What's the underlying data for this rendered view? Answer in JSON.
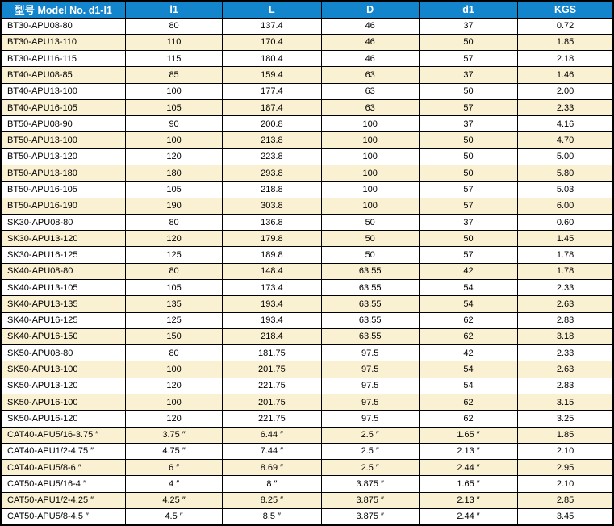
{
  "colors": {
    "header_background": "#1285CD",
    "header_text": "#FFFFFF",
    "row_alternate_background": "#FAF0D2",
    "row_background": "#FFFFFF",
    "border": "#000000",
    "cell_text": "#000000"
  },
  "table": {
    "columns": [
      "型号 Model No. d1-l1",
      "l1",
      "L",
      "D",
      "d1",
      "KGS"
    ],
    "column_keys": [
      "model-no",
      "l1",
      "L",
      "D",
      "d1",
      "KGS"
    ],
    "rows": [
      [
        "BT30-APU08-80",
        "80",
        "137.4",
        "46",
        "37",
        "0.72"
      ],
      [
        "BT30-APU13-110",
        "110",
        "170.4",
        "46",
        "50",
        "1.85"
      ],
      [
        "BT30-APU16-115",
        "115",
        "180.4",
        "46",
        "57",
        "2.18"
      ],
      [
        "BT40-APU08-85",
        "85",
        "159.4",
        "63",
        "37",
        "1.46"
      ],
      [
        "BT40-APU13-100",
        "100",
        "177.4",
        "63",
        "50",
        "2.00"
      ],
      [
        "BT40-APU16-105",
        "105",
        "187.4",
        "63",
        "57",
        "2.33"
      ],
      [
        "BT50-APU08-90",
        "90",
        "200.8",
        "100",
        "37",
        "4.16"
      ],
      [
        "BT50-APU13-100",
        "100",
        "213.8",
        "100",
        "50",
        "4.70"
      ],
      [
        "BT50-APU13-120",
        "120",
        "223.8",
        "100",
        "50",
        "5.00"
      ],
      [
        "BT50-APU13-180",
        "180",
        "293.8",
        "100",
        "50",
        "5.80"
      ],
      [
        "BT50-APU16-105",
        "105",
        "218.8",
        "100",
        "57",
        "5.03"
      ],
      [
        "BT50-APU16-190",
        "190",
        "303.8",
        "100",
        "57",
        "6.00"
      ],
      [
        "SK30-APU08-80",
        "80",
        "136.8",
        "50",
        "37",
        "0.60"
      ],
      [
        "SK30-APU13-120",
        "120",
        "179.8",
        "50",
        "50",
        "1.45"
      ],
      [
        "SK30-APU16-125",
        "125",
        "189.8",
        "50",
        "57",
        "1.78"
      ],
      [
        "SK40-APU08-80",
        "80",
        "148.4",
        "63.55",
        "42",
        "1.78"
      ],
      [
        "SK40-APU13-105",
        "105",
        "173.4",
        "63.55",
        "54",
        "2.33"
      ],
      [
        "SK40-APU13-135",
        "135",
        "193.4",
        "63.55",
        "54",
        "2.63"
      ],
      [
        "SK40-APU16-125",
        "125",
        "193.4",
        "63.55",
        "62",
        "2.83"
      ],
      [
        "SK40-APU16-150",
        "150",
        "218.4",
        "63.55",
        "62",
        "3.18"
      ],
      [
        "SK50-APU08-80",
        "80",
        "181.75",
        "97.5",
        "42",
        "2.33"
      ],
      [
        "SK50-APU13-100",
        "100",
        "201.75",
        "97.5",
        "54",
        "2.63"
      ],
      [
        "SK50-APU13-120",
        "120",
        "221.75",
        "97.5",
        "54",
        "2.83"
      ],
      [
        "SK50-APU16-100",
        "100",
        "201.75",
        "97.5",
        "62",
        "3.15"
      ],
      [
        "SK50-APU16-120",
        "120",
        "221.75",
        "97.5",
        "62",
        "3.25"
      ],
      [
        "CAT40-APU5/16-3.75 ″",
        "3.75 ″",
        "6.44 ″",
        "2.5 ″",
        "1.65 ″",
        "1.85"
      ],
      [
        "CAT40-APU1/2-4.75 ″",
        "4.75 ″",
        "7.44 ″",
        "2.5 ″",
        "2.13 ″",
        "2.10"
      ],
      [
        "CAT40-APU5/8-6 ″",
        "6 ″",
        "8.69 ″",
        "2.5 ″",
        "2.44 ″",
        "2.95"
      ],
      [
        "CAT50-APU5/16-4 ″",
        "4 ″",
        "8 ″",
        "3.875 ″",
        "1.65 ″",
        "2.10"
      ],
      [
        "CAT50-APU1/2-4.25 ″",
        "4.25 ″",
        "8.25 ″",
        "3.875 ″",
        "2.13 ″",
        "2.85"
      ],
      [
        "CAT50-APU5/8-4.5 ″",
        "4.5 ″",
        "8.5 ″",
        "3.875 ″",
        "2.44 ″",
        "3.45"
      ]
    ]
  }
}
